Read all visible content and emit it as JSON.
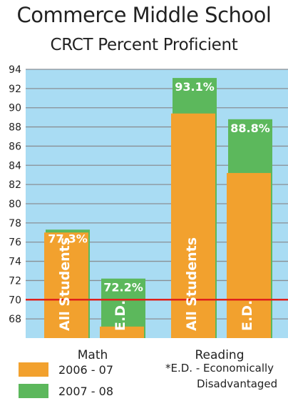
{
  "title": "Commerce Middle School",
  "subtitle": "CRCT Percent Proficient",
  "chart_data": {
    "type": "bar",
    "categories": [
      "Math",
      "Reading"
    ],
    "groups": [
      {
        "category": "Math",
        "bars": [
          {
            "label": "All Students",
            "values": {
              "2006 - 07": 77.0,
              "2007 - 08": 77.3
            },
            "data_label": "77.3%"
          },
          {
            "label": "E.D.",
            "values": {
              "2006 - 07": 67.2,
              "2007 - 08": 72.2
            },
            "data_label": "72.2%"
          }
        ]
      },
      {
        "category": "Reading",
        "bars": [
          {
            "label": "All Students",
            "values": {
              "2006 - 07": 89.4,
              "2007 - 08": 93.1
            },
            "data_label": "93.1%"
          },
          {
            "label": "E.D.",
            "values": {
              "2006 - 07": 83.2,
              "2007 - 08": 88.8
            },
            "data_label": "88.8%"
          }
        ]
      }
    ],
    "series": [
      {
        "name": "2006 - 07",
        "color": "#F2A12E"
      },
      {
        "name": "2007 - 08",
        "color": "#5CB85C"
      }
    ],
    "ylim": [
      66,
      94
    ],
    "yticks": [
      68,
      70,
      72,
      74,
      76,
      78,
      80,
      82,
      84,
      86,
      88,
      90,
      92,
      94
    ],
    "target_line": {
      "value": 70,
      "color": "#E0201B"
    },
    "grid": true,
    "background_color": "#A9DCF3",
    "legend_placement": "bottom-left"
  },
  "footnote": {
    "line1": "*E.D. - Economically",
    "line2": "Disadvantaged"
  }
}
